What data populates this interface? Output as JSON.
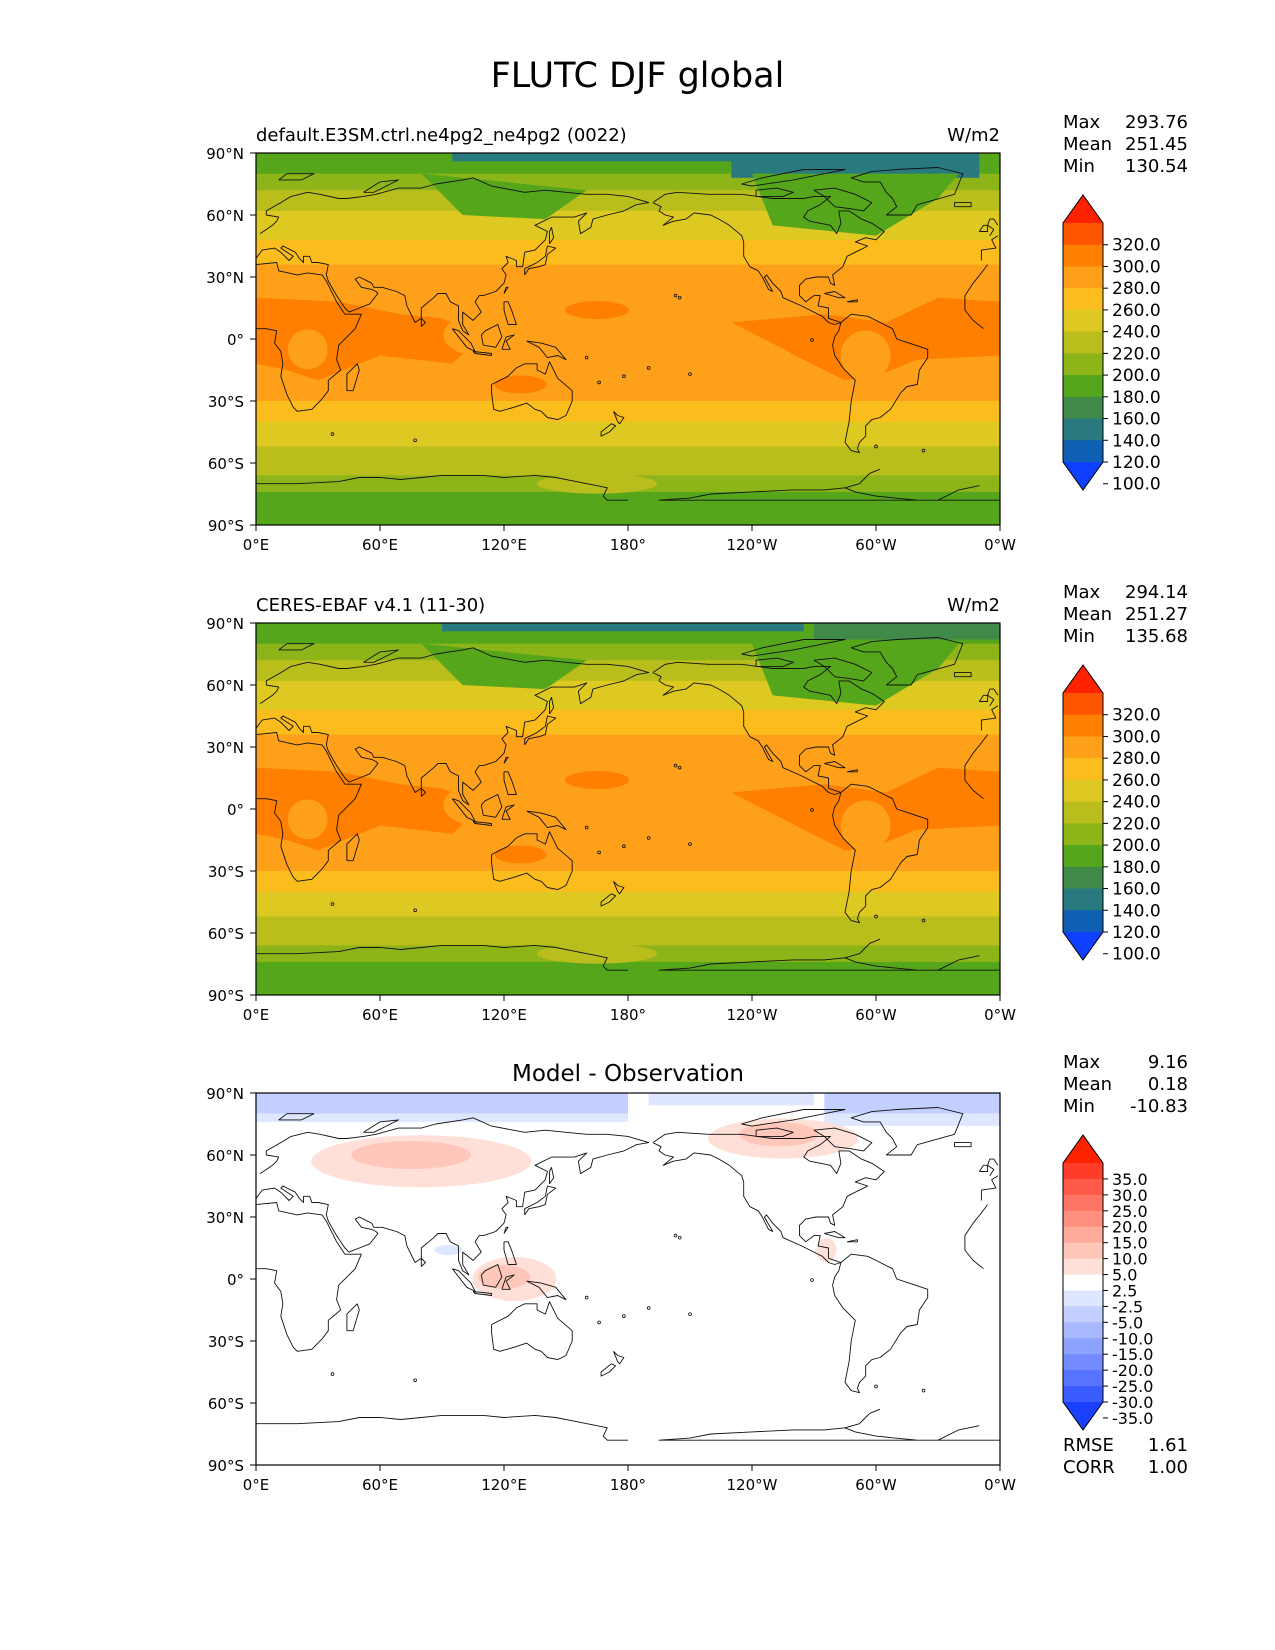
{
  "page_title": "FLUTC DJF global",
  "chart_data": [
    {
      "type": "heatmap",
      "title_left": "default.E3SM.ctrl.ne4pg2_ne4pg2 (0022)",
      "title_center": "",
      "units": "W/m2",
      "stats": [
        {
          "label": "Max",
          "value": "293.76"
        },
        {
          "label": "Mean",
          "value": "251.45"
        },
        {
          "label": "Min",
          "value": "130.54"
        }
      ],
      "colorbar": {
        "labels": [
          "320.0",
          "300.0",
          "280.0",
          "260.0",
          "240.0",
          "220.0",
          "200.0",
          "180.0",
          "160.0",
          "140.0",
          "120.0",
          "100.0"
        ],
        "colors": [
          "#ff2200",
          "#ff5500",
          "#ff7f00",
          "#ffa01a",
          "#fbbd1e",
          "#ddc921",
          "#b9be1c",
          "#8db519",
          "#55a61b",
          "#3f8a48",
          "#287a7f",
          "#0f5fb4",
          "#1040ff"
        ],
        "extend": "both"
      },
      "x_ticks": [
        "0°E",
        "60°E",
        "120°E",
        "180°",
        "120°W",
        "60°W",
        "0°W"
      ],
      "y_ticks": [
        "90°N",
        "60°N",
        "30°N",
        "0°",
        "30°S",
        "60°S",
        "90°S"
      ],
      "xlim": [
        0,
        360
      ],
      "ylim": [
        -90,
        90
      ]
    },
    {
      "type": "heatmap",
      "title_left": "CERES-EBAF v4.1 (11-30)",
      "title_center": "",
      "units": "W/m2",
      "stats": [
        {
          "label": "Max",
          "value": "294.14"
        },
        {
          "label": "Mean",
          "value": "251.27"
        },
        {
          "label": "Min",
          "value": "135.68"
        }
      ],
      "colorbar": {
        "labels": [
          "320.0",
          "300.0",
          "280.0",
          "260.0",
          "240.0",
          "220.0",
          "200.0",
          "180.0",
          "160.0",
          "140.0",
          "120.0",
          "100.0"
        ],
        "colors": [
          "#ff2200",
          "#ff5500",
          "#ff7f00",
          "#ffa01a",
          "#fbbd1e",
          "#ddc921",
          "#b9be1c",
          "#8db519",
          "#55a61b",
          "#3f8a48",
          "#287a7f",
          "#0f5fb4",
          "#1040ff"
        ],
        "extend": "both"
      },
      "x_ticks": [
        "0°E",
        "60°E",
        "120°E",
        "180°",
        "120°W",
        "60°W",
        "0°W"
      ],
      "y_ticks": [
        "90°N",
        "60°N",
        "30°N",
        "0°",
        "30°S",
        "60°S",
        "90°S"
      ],
      "xlim": [
        0,
        360
      ],
      "ylim": [
        -90,
        90
      ]
    },
    {
      "type": "heatmap",
      "title_left": "",
      "title_center": "Model - Observation",
      "units": "",
      "stats": [
        {
          "label": "Max",
          "value": "9.16"
        },
        {
          "label": "Mean",
          "value": "0.18"
        },
        {
          "label": "Min",
          "value": "-10.83"
        }
      ],
      "colorbar": {
        "labels": [
          "35.0",
          "30.0",
          "25.0",
          "20.0",
          "15.0",
          "10.0",
          "5.0",
          "2.5",
          "-2.5",
          "-5.0",
          "-10.0",
          "-15.0",
          "-20.0",
          "-25.0",
          "-30.0",
          "-35.0"
        ],
        "colors": [
          "#ff2200",
          "#ff3c2a",
          "#ff5a48",
          "#ff7565",
          "#ff9080",
          "#ffab9c",
          "#ffc6ba",
          "#ffe0d8",
          "#ffffff",
          "#dfe6ff",
          "#c3cfff",
          "#a8b8ff",
          "#8ea2ff",
          "#738bff",
          "#5874ff",
          "#3b5cff",
          "#1a40ff"
        ],
        "extend": "both"
      },
      "bottom_stats": [
        {
          "label": "RMSE",
          "value": "1.61"
        },
        {
          "label": "CORR",
          "value": "1.00"
        }
      ],
      "x_ticks": [
        "0°E",
        "60°E",
        "120°E",
        "180°",
        "120°W",
        "60°W",
        "0°W"
      ],
      "y_ticks": [
        "90°N",
        "60°N",
        "30°N",
        "0°",
        "30°S",
        "60°S",
        "90°S"
      ],
      "xlim": [
        0,
        360
      ],
      "ylim": [
        -90,
        90
      ]
    }
  ]
}
